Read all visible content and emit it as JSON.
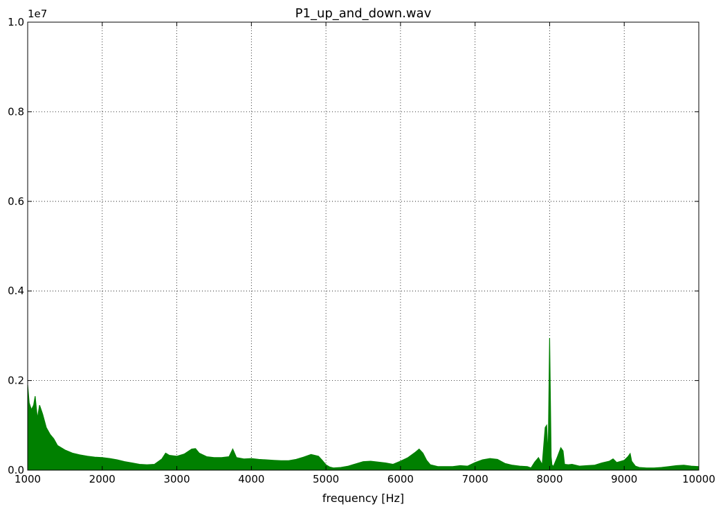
{
  "chart_data": {
    "type": "area",
    "title": "P1_up_and_down.wav",
    "xlabel": "frequency [Hz]",
    "ylabel": "",
    "xlim": [
      1000,
      10000
    ],
    "ylim": [
      0,
      10000000
    ],
    "y_offset_label": "1e7",
    "grid": true,
    "legend": "none",
    "x_ticks": [
      1000,
      2000,
      3000,
      4000,
      5000,
      6000,
      7000,
      8000,
      9000,
      10000
    ],
    "x_tick_labels": [
      "1000",
      "2000",
      "3000",
      "4000",
      "5000",
      "6000",
      "7000",
      "8000",
      "9000",
      "10000"
    ],
    "y_ticks": [
      0,
      2000000,
      4000000,
      6000000,
      8000000,
      10000000
    ],
    "y_tick_labels": [
      "0.0",
      "0.2",
      "0.4",
      "0.6",
      "0.8",
      "1.0"
    ],
    "series": [
      {
        "color": "#008000",
        "x": [
          1000,
          1020,
          1050,
          1080,
          1100,
          1130,
          1160,
          1200,
          1250,
          1300,
          1350,
          1400,
          1450,
          1500,
          1600,
          1700,
          1800,
          1900,
          2000,
          2100,
          2200,
          2300,
          2400,
          2500,
          2600,
          2700,
          2800,
          2850,
          2900,
          3000,
          3100,
          3200,
          3250,
          3300,
          3400,
          3500,
          3600,
          3700,
          3750,
          3800,
          3900,
          4000,
          4100,
          4200,
          4300,
          4400,
          4500,
          4600,
          4700,
          4800,
          4900,
          4950,
          5000,
          5050,
          5100,
          5200,
          5300,
          5400,
          5500,
          5600,
          5700,
          5800,
          5900,
          6000,
          6100,
          6200,
          6250,
          6300,
          6350,
          6400,
          6500,
          6600,
          6700,
          6800,
          6900,
          7000,
          7100,
          7200,
          7300,
          7400,
          7500,
          7600,
          7700,
          7750,
          7800,
          7850,
          7900,
          7940,
          7960,
          7980,
          8000,
          8010,
          8020,
          8030,
          8050,
          8100,
          8150,
          8180,
          8200,
          8250,
          8300,
          8400,
          8500,
          8600,
          8700,
          8800,
          8850,
          8900,
          9000,
          9050,
          9080,
          9100,
          9150,
          9200,
          9300,
          9400,
          9500,
          9600,
          9700,
          9800,
          9900,
          10000
        ],
        "y": [
          1900000,
          1500000,
          1350000,
          1450000,
          1650000,
          1150000,
          1450000,
          1250000,
          950000,
          800000,
          700000,
          550000,
          500000,
          450000,
          380000,
          340000,
          310000,
          290000,
          280000,
          260000,
          230000,
          190000,
          160000,
          130000,
          120000,
          130000,
          250000,
          380000,
          330000,
          310000,
          360000,
          470000,
          480000,
          380000,
          300000,
          280000,
          280000,
          300000,
          470000,
          280000,
          250000,
          260000,
          240000,
          230000,
          220000,
          210000,
          210000,
          240000,
          290000,
          350000,
          310000,
          220000,
          120000,
          70000,
          50000,
          60000,
          90000,
          140000,
          190000,
          200000,
          180000,
          160000,
          130000,
          200000,
          280000,
          400000,
          470000,
          380000,
          220000,
          120000,
          80000,
          80000,
          80000,
          100000,
          90000,
          170000,
          230000,
          260000,
          240000,
          150000,
          110000,
          90000,
          80000,
          50000,
          180000,
          280000,
          120000,
          950000,
          1000000,
          300000,
          2950000,
          1600000,
          300000,
          120000,
          80000,
          280000,
          500000,
          430000,
          130000,
          120000,
          130000,
          90000,
          100000,
          110000,
          160000,
          200000,
          250000,
          170000,
          220000,
          300000,
          370000,
          200000,
          90000,
          60000,
          50000,
          50000,
          60000,
          80000,
          100000,
          110000,
          90000,
          80000
        ]
      }
    ]
  }
}
